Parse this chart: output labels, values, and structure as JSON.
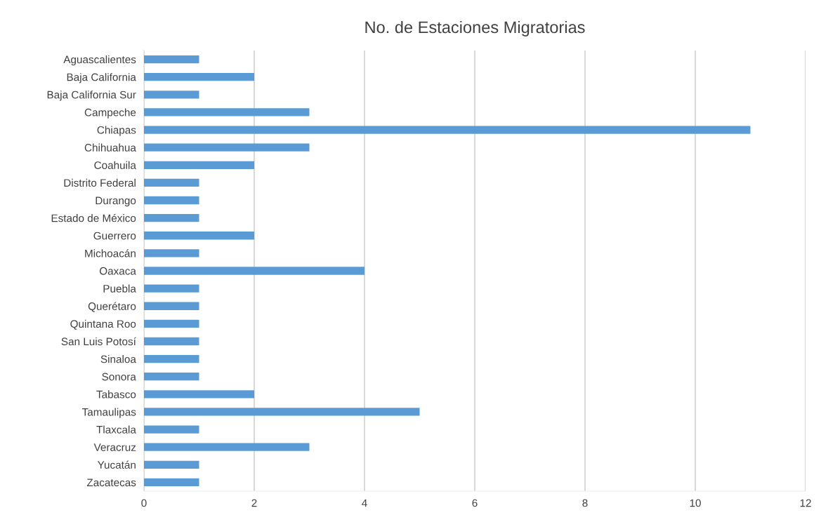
{
  "chart_data": {
    "type": "bar",
    "orientation": "horizontal",
    "title": "No. de Estaciones Migratorias",
    "categories": [
      "Aguascalientes",
      "Baja California",
      "Baja California Sur",
      "Campeche",
      "Chiapas",
      "Chihuahua",
      "Coahuila",
      "Distrito Federal",
      "Durango",
      "Estado de México",
      "Guerrero",
      "Michoacán",
      "Oaxaca",
      "Puebla",
      "Querétaro",
      "Quintana Roo",
      "San Luis Potosí",
      "Sinaloa",
      "Sonora",
      "Tabasco",
      "Tamaulipas",
      "Tlaxcala",
      "Veracruz",
      "Yucatán",
      "Zacatecas"
    ],
    "values": [
      1,
      2,
      1,
      3,
      11,
      3,
      2,
      1,
      1,
      1,
      2,
      1,
      4,
      1,
      1,
      1,
      1,
      1,
      1,
      2,
      5,
      1,
      3,
      1,
      1
    ],
    "color": "#5b9bd5",
    "xlim": [
      0,
      12
    ],
    "xticks": [
      0,
      2,
      4,
      6,
      8,
      10,
      12
    ],
    "grid": "x",
    "legend": false
  }
}
